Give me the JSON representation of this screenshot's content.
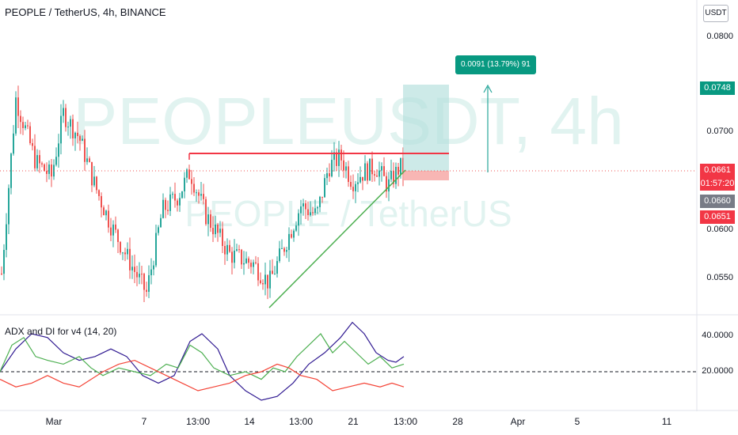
{
  "header": {
    "title": "PEOPLE / TetherUS, 4h, BINANCE",
    "currency_button": "USDT"
  },
  "watermark": {
    "symbol": "PEOPLEUSDT, 4h",
    "name": "PEOPLE / TetherUS"
  },
  "price_axis": {
    "labels": [
      "0.0800",
      "0.0700",
      "0.0600",
      "0.0550"
    ]
  },
  "price_tags": {
    "target": "0.0748",
    "last": "0.0661",
    "countdown": "01:57:20",
    "cursor": "0.0660",
    "stop": "0.0651"
  },
  "position_tool": {
    "label": "0.0091 (13.79%) 91"
  },
  "indicator": {
    "title": "ADX and DI for v4 (14, 20)",
    "axis_labels": [
      "40.0000",
      "20.0000"
    ],
    "threshold": 20
  },
  "time_axis": {
    "labels": [
      "Mar",
      "7",
      "13:00",
      "14",
      "13:00",
      "21",
      "13:00",
      "28",
      "Apr",
      "5",
      "11"
    ]
  },
  "colors": {
    "up": "#26a69a",
    "down": "#ef5350",
    "resistance": "#f23645",
    "trendline": "#4caf50",
    "adx": "#311b92",
    "di_plus": "#4caf50",
    "di_minus": "#f44336",
    "target_zone": "#b2dfdb",
    "stop_zone": "#f7a9a7",
    "tag_green": "#089981",
    "tag_red": "#f23645",
    "tag_gray": "#787b86"
  }
}
